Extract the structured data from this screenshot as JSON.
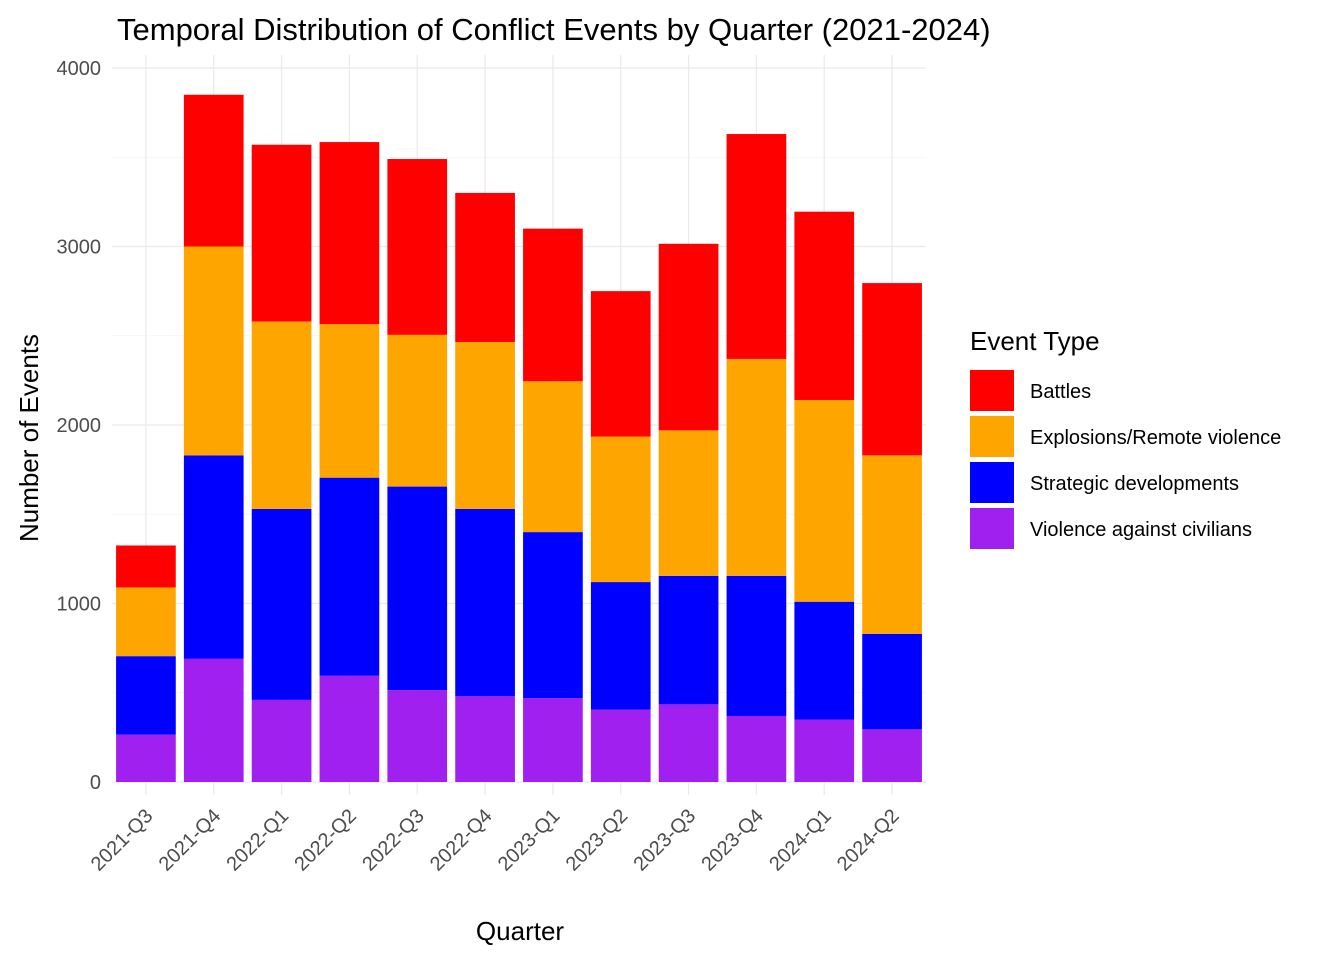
{
  "chart_data": {
    "type": "bar",
    "stacked": true,
    "title": "Temporal Distribution of Conflict Events by Quarter (2021-2024)",
    "xlabel": "Quarter",
    "ylabel": "Number of Events",
    "ylim": [
      0,
      4000
    ],
    "yticks": [
      0,
      1000,
      2000,
      3000,
      4000
    ],
    "grid": true,
    "legend_position": "right",
    "legend_title": "Event Type",
    "categories": [
      "2021-Q3",
      "2021-Q4",
      "2022-Q1",
      "2022-Q2",
      "2022-Q3",
      "2022-Q4",
      "2023-Q1",
      "2023-Q2",
      "2023-Q3",
      "2023-Q4",
      "2024-Q1",
      "2024-Q2"
    ],
    "series": [
      {
        "name": "Violence against civilians",
        "color": "#a020f0",
        "values": [
          265,
          690,
          460,
          595,
          515,
          480,
          470,
          405,
          435,
          370,
          350,
          295
        ]
      },
      {
        "name": "Strategic developments",
        "color": "#0000ff",
        "values": [
          440,
          1140,
          1070,
          1110,
          1140,
          1050,
          930,
          715,
          720,
          785,
          660,
          535
        ]
      },
      {
        "name": "Explosions/Remote violence",
        "color": "#ffa500",
        "values": [
          385,
          1170,
          1050,
          860,
          850,
          935,
          845,
          815,
          815,
          1215,
          1130,
          1000
        ]
      },
      {
        "name": "Battles",
        "color": "#ff0000",
        "values": [
          235,
          850,
          990,
          1020,
          985,
          835,
          855,
          815,
          1045,
          1260,
          1055,
          965
        ]
      }
    ]
  }
}
